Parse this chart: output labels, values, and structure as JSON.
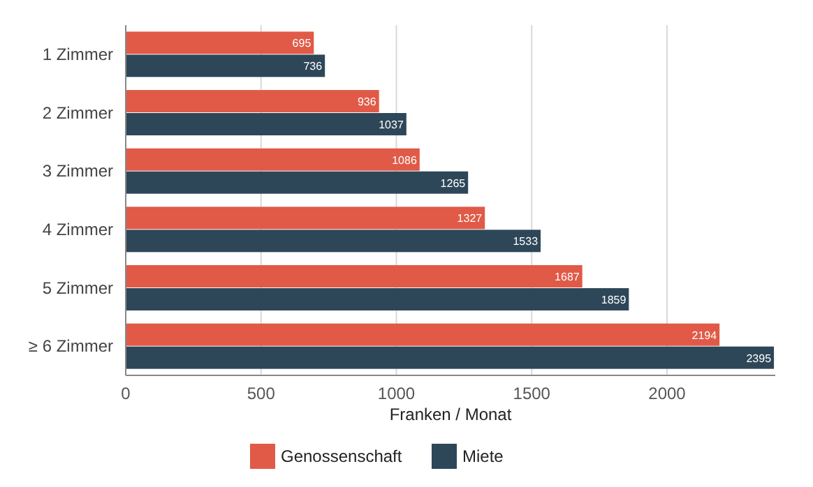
{
  "chart_data": {
    "type": "bar",
    "orientation": "horizontal",
    "xlabel": "Franken / Monat",
    "categories": [
      "1 Zimmer",
      "2 Zimmer",
      "3 Zimmer",
      "4 Zimmer",
      "5 Zimmer",
      "≥ 6 Zimmer"
    ],
    "series": [
      {
        "name": "Genossenschaft",
        "color": "#e05a47",
        "values": [
          695,
          936,
          1086,
          1327,
          1687,
          2194
        ]
      },
      {
        "name": "Miete",
        "color": "#2e4758",
        "values": [
          736,
          1037,
          1265,
          1533,
          1859,
          2395
        ]
      }
    ],
    "xlim": [
      0,
      2400
    ],
    "xticks": [
      0,
      500,
      1000,
      1500,
      2000
    ],
    "grid": "x",
    "legend": "bottom",
    "data_labels": true
  }
}
